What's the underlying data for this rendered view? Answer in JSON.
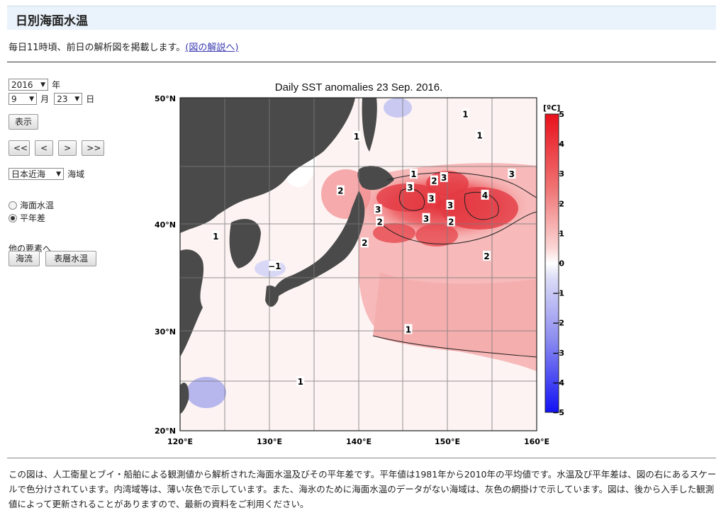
{
  "page": {
    "title": "日別海面水温",
    "intro_text": "毎日11時頃、前日の解析図を掲載します。",
    "intro_link": "(図の解説へ)"
  },
  "controls": {
    "year_value": "2016",
    "year_label": "年",
    "month_value": "9",
    "month_label": "月",
    "day_value": "23",
    "day_label": "日",
    "show_button": "表示",
    "nav_buttons": [
      "<<",
      "<",
      ">",
      ">>"
    ],
    "region_value": "日本近海",
    "region_label": "海域",
    "radio_options": [
      {
        "label": "海面水温",
        "selected": false
      },
      {
        "label": "平年差",
        "selected": true
      }
    ],
    "other_label": "他の要素へ",
    "other_buttons": [
      "海流",
      "表層水温"
    ]
  },
  "map": {
    "title": "Daily SST anomalies 23 Sep. 2016.",
    "lat_labels": [
      "50°N",
      "40°N",
      "30°N",
      "20°N"
    ],
    "lon_labels": [
      "120°E",
      "130°E",
      "140°E",
      "150°E",
      "160°E"
    ],
    "colorbar_unit": "[ºC]",
    "colorbar_ticks": [
      "5",
      "4",
      "3",
      "2",
      "1",
      "0",
      "−1",
      "−2",
      "−3",
      "−4",
      "−5"
    ],
    "contour_labels": [
      {
        "text": "1",
        "lon": 152.0,
        "lat": 48.5
      },
      {
        "text": "1",
        "lon": 153.6,
        "lat": 46.6
      },
      {
        "text": "1",
        "lon": 139.8,
        "lat": 46.5
      },
      {
        "text": "1",
        "lon": 146.2,
        "lat": 43.1
      },
      {
        "text": "2",
        "lon": 148.5,
        "lat": 42.5
      },
      {
        "text": "3",
        "lon": 149.6,
        "lat": 42.8
      },
      {
        "text": "3",
        "lon": 157.2,
        "lat": 43.1
      },
      {
        "text": "2",
        "lon": 138.0,
        "lat": 41.6
      },
      {
        "text": "3",
        "lon": 145.8,
        "lat": 41.9
      },
      {
        "text": "3",
        "lon": 148.2,
        "lat": 40.9
      },
      {
        "text": "4",
        "lon": 154.2,
        "lat": 41.2
      },
      {
        "text": "3",
        "lon": 150.3,
        "lat": 40.3
      },
      {
        "text": "3",
        "lon": 142.2,
        "lat": 39.9
      },
      {
        "text": "2",
        "lon": 142.4,
        "lat": 38.8
      },
      {
        "text": "3",
        "lon": 147.6,
        "lat": 39.1
      },
      {
        "text": "2",
        "lon": 150.4,
        "lat": 38.8
      },
      {
        "text": "1",
        "lon": 124.0,
        "lat": 37.5
      },
      {
        "text": "2",
        "lon": 140.7,
        "lat": 36.9
      },
      {
        "text": "2",
        "lon": 154.4,
        "lat": 35.7
      },
      {
        "text": "−1",
        "lon": 130.6,
        "lat": 34.8
      },
      {
        "text": "1",
        "lon": 145.6,
        "lat": 29.1
      },
      {
        "text": "1",
        "lon": 133.5,
        "lat": 24.4
      }
    ]
  },
  "footer_text": "この図は、人工衛星とブイ・船舶による観測値から解析された海面水温及びその平年差です。平年値は1981年から2010年の平均値です。水温及び平年差は、図の右にあるスケールで色分けされています。内湾域等は、薄い灰色で示しています。また、海氷のために海面水温のデータがない海域は、灰色の網掛けで示しています。図は、後から入手した観測値によって更新されることがありますので、最新の資料をご利用ください。",
  "colors": {
    "land": "#4a4a4a",
    "warm": "#e8252a",
    "cold": "#1a1aff",
    "neutral": "#ffffff"
  }
}
